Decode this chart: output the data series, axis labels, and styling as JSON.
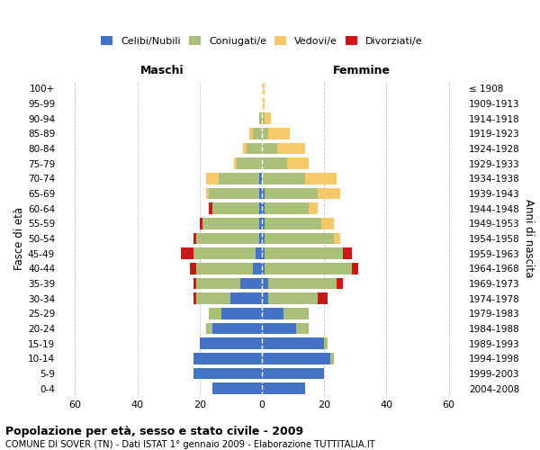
{
  "age_groups": [
    "0-4",
    "5-9",
    "10-14",
    "15-19",
    "20-24",
    "25-29",
    "30-34",
    "35-39",
    "40-44",
    "45-49",
    "50-54",
    "55-59",
    "60-64",
    "65-69",
    "70-74",
    "75-79",
    "80-84",
    "85-89",
    "90-94",
    "95-99",
    "100+"
  ],
  "birth_years": [
    "2004-2008",
    "1999-2003",
    "1994-1998",
    "1989-1993",
    "1984-1988",
    "1979-1983",
    "1974-1978",
    "1969-1973",
    "1964-1968",
    "1959-1963",
    "1954-1958",
    "1949-1953",
    "1944-1948",
    "1939-1943",
    "1934-1938",
    "1929-1933",
    "1924-1928",
    "1919-1923",
    "1914-1918",
    "1909-1913",
    "≤ 1908"
  ],
  "male": {
    "celibi": [
      16,
      22,
      22,
      20,
      16,
      13,
      10,
      7,
      3,
      2,
      1,
      1,
      1,
      1,
      1,
      0,
      0,
      0,
      0,
      0,
      0
    ],
    "coniugati": [
      0,
      0,
      0,
      0,
      2,
      4,
      11,
      14,
      18,
      20,
      20,
      18,
      15,
      16,
      13,
      8,
      5,
      3,
      1,
      0,
      0
    ],
    "vedovi": [
      0,
      0,
      0,
      0,
      0,
      0,
      0,
      0,
      0,
      0,
      0,
      0,
      0,
      1,
      4,
      1,
      1,
      1,
      0,
      0,
      0
    ],
    "divorziati": [
      0,
      0,
      0,
      0,
      0,
      0,
      1,
      1,
      2,
      4,
      1,
      1,
      1,
      0,
      0,
      0,
      0,
      0,
      0,
      0,
      0
    ]
  },
  "female": {
    "nubili": [
      14,
      20,
      22,
      20,
      11,
      7,
      2,
      2,
      1,
      1,
      1,
      1,
      1,
      1,
      0,
      0,
      0,
      0,
      0,
      0,
      0
    ],
    "coniugate": [
      0,
      0,
      1,
      1,
      4,
      8,
      16,
      22,
      28,
      25,
      22,
      18,
      14,
      17,
      14,
      8,
      5,
      2,
      1,
      0,
      0
    ],
    "vedove": [
      0,
      0,
      0,
      0,
      0,
      0,
      0,
      0,
      0,
      0,
      2,
      4,
      3,
      7,
      10,
      7,
      9,
      7,
      2,
      1,
      1
    ],
    "divorziate": [
      0,
      0,
      0,
      0,
      0,
      0,
      3,
      2,
      2,
      3,
      0,
      0,
      0,
      0,
      0,
      0,
      0,
      0,
      0,
      0,
      0
    ]
  },
  "colors": {
    "celibi_nubili": "#4472C4",
    "coniugati": "#AABF78",
    "vedovi": "#F5C96A",
    "divorziati": "#CC1717"
  },
  "xlim": 65,
  "title": "Popolazione per età, sesso e stato civile - 2009",
  "subtitle": "COMUNE DI SOVER (TN) - Dati ISTAT 1° gennaio 2009 - Elaborazione TUTTITALIA.IT",
  "xlabel_left": "Maschi",
  "xlabel_right": "Femmine",
  "ylabel": "Fasce di età",
  "ylabel_right": "Anni di nascita"
}
